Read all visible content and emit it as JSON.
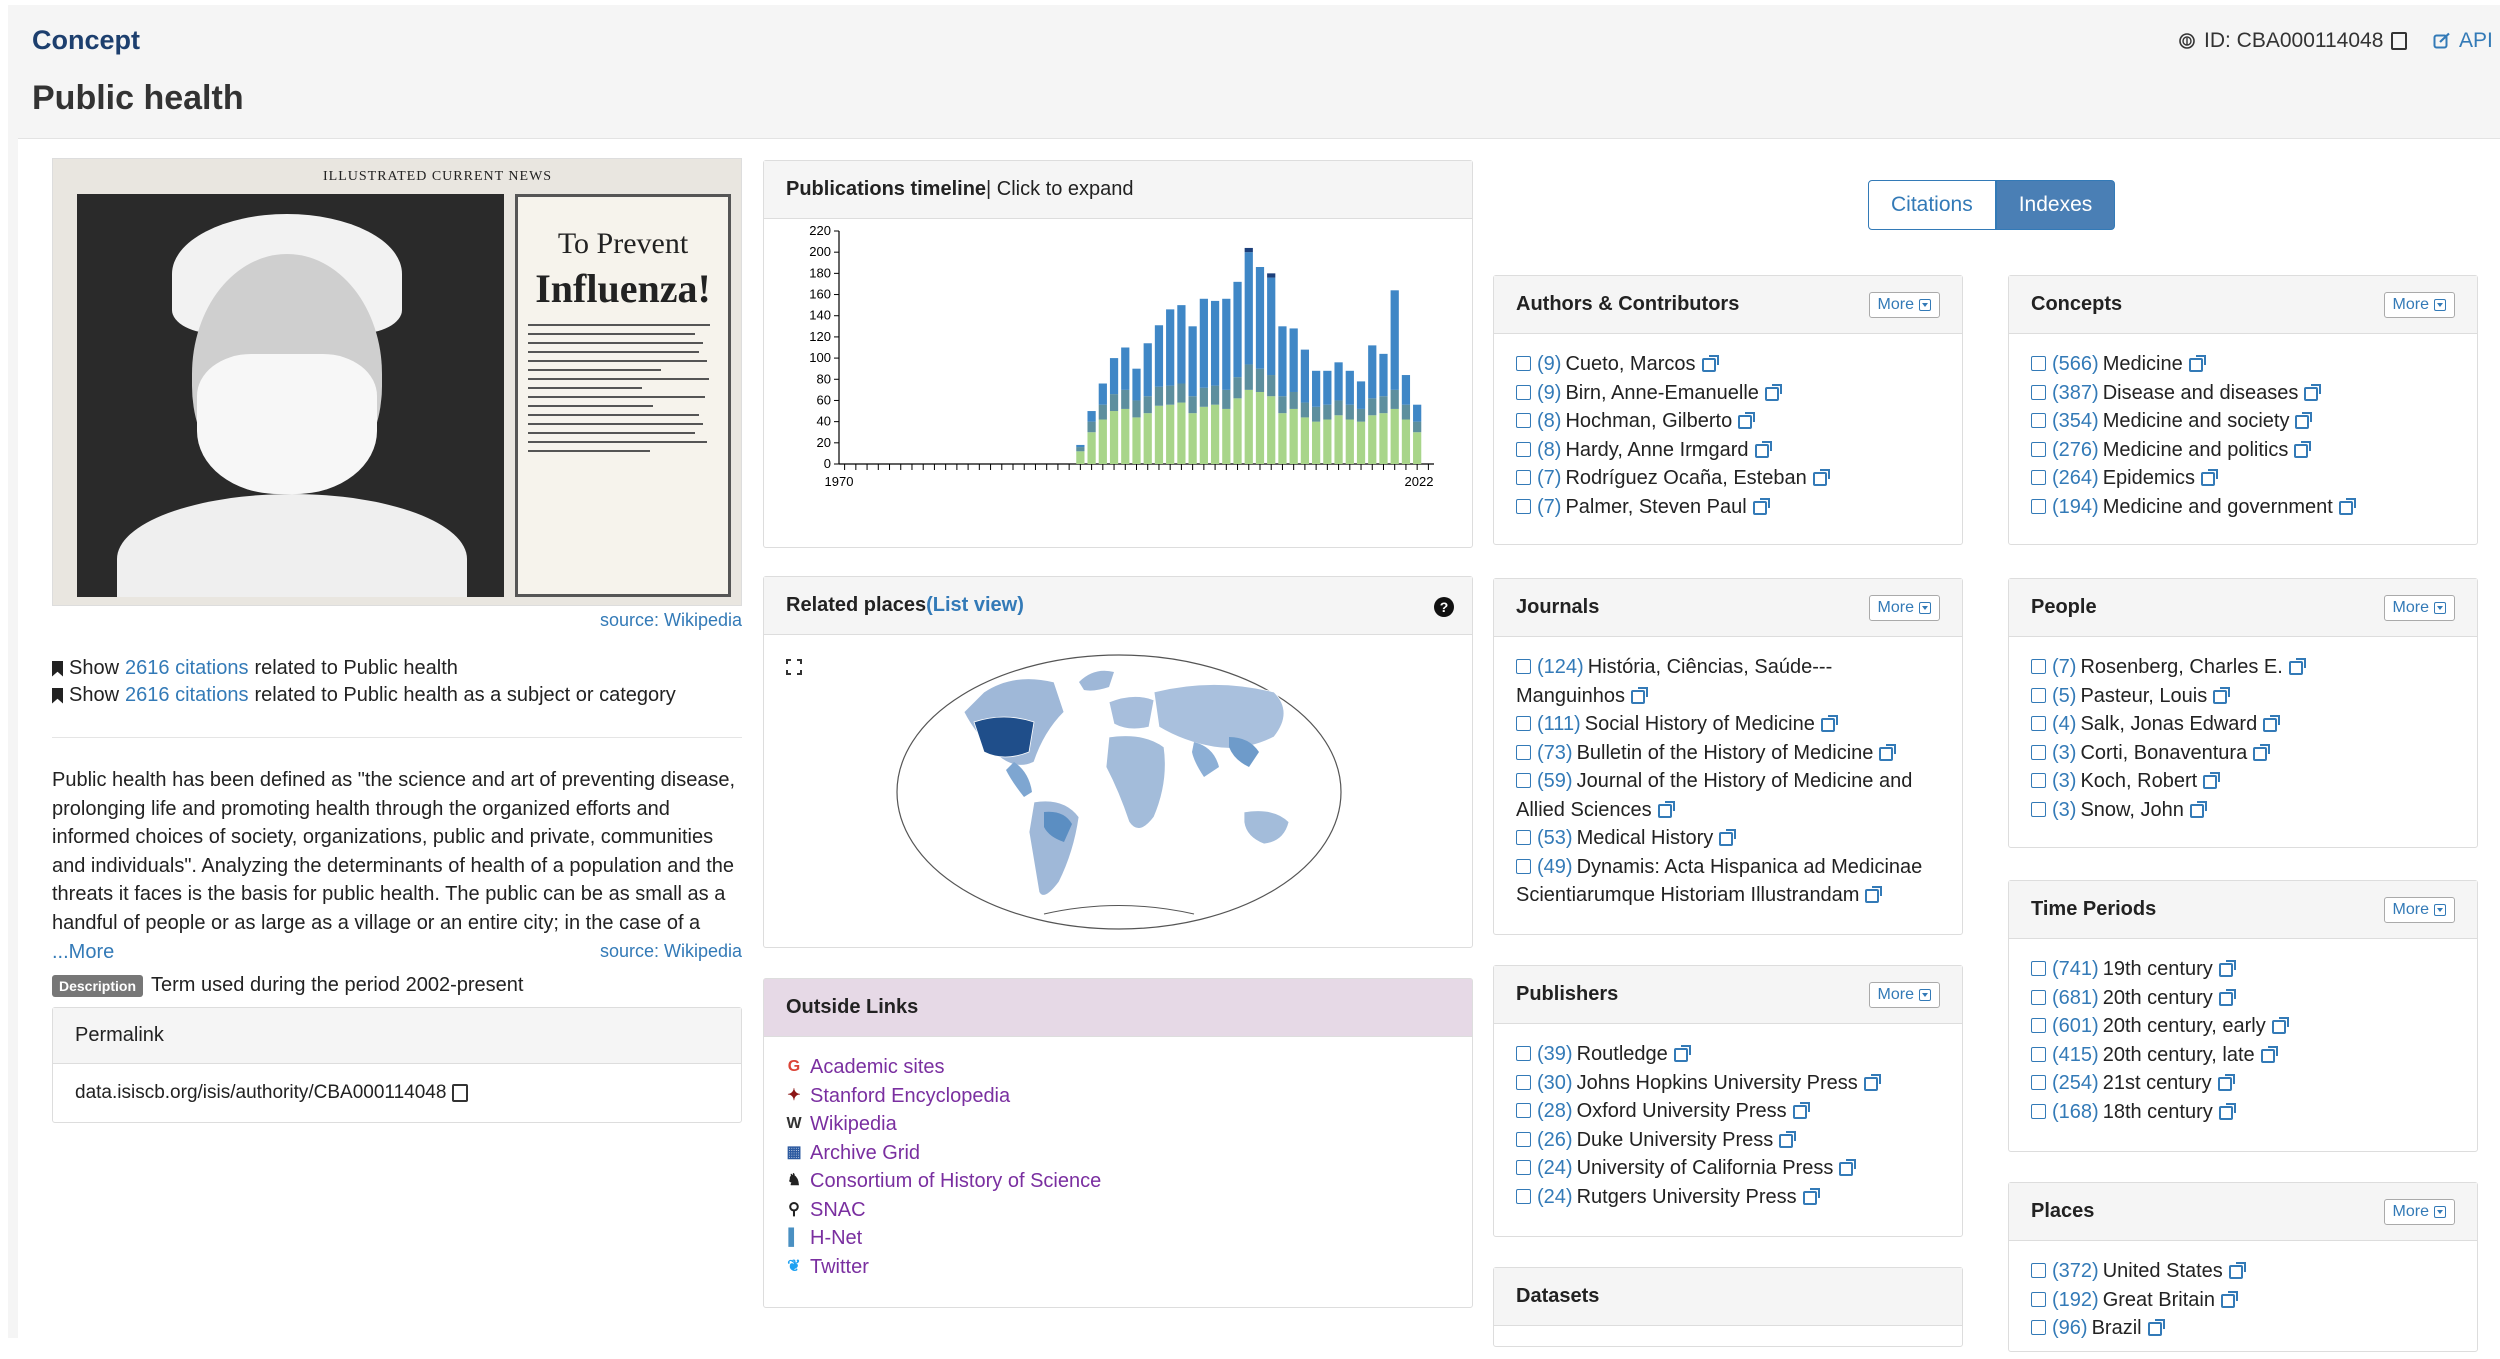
{
  "header": {
    "concept_label": "Concept",
    "title": "Public health",
    "id_text": "ID: CBA000114048",
    "api_label": "API"
  },
  "left": {
    "poster": {
      "headline": "ILLUSTRATED CURRENT NEWS",
      "line1": "To Prevent",
      "line2": "Influenza!"
    },
    "image_source": "source: Wikipedia",
    "show1": {
      "prefix": "Show",
      "link": "2616 citations",
      "suffix": "related to Public health"
    },
    "show2": {
      "prefix": "Show",
      "link": "2616 citations",
      "suffix": "related to Public health as a subject or category"
    },
    "description": "Public health has been defined as \"the science and art of preventing disease, prolonging life and promoting health through the organized efforts and informed choices of society, organizations, public and private, communities and individuals\". Analyzing the determinants of health of a population and the threats it faces is the basis for public health. The public can be as small as a handful of people or as large as a village or an entire city; in the case of a pandemic it may encompass several continents. The concept of health tak…",
    "more_link": "...More",
    "desc_source": "source: Wikipedia",
    "badge": "Description",
    "badge_text": "Term used during the period 2002-present",
    "permalink_title": "Permalink",
    "permalink_url": "data.isiscb.org/isis/authority/CBA000114048"
  },
  "timeline": {
    "title_bold": "Publications timeline",
    "title_rest": " | Click to expand"
  },
  "chart_data": {
    "type": "bar",
    "x_start": 1970,
    "x_end": 2022,
    "x_tick_labels": [
      "1970",
      "2022"
    ],
    "y_ticks": [
      0,
      20,
      40,
      60,
      80,
      100,
      120,
      140,
      160,
      180,
      200,
      220
    ],
    "ylim": [
      0,
      220
    ],
    "years": [
      1991,
      1992,
      1993,
      1994,
      1995,
      1996,
      1997,
      1998,
      1999,
      2000,
      2001,
      2002,
      2003,
      2004,
      2005,
      2006,
      2007,
      2008,
      2009,
      2010,
      2011,
      2012,
      2013,
      2014,
      2015,
      2016,
      2017,
      2018,
      2019,
      2020,
      2021
    ],
    "series": [
      {
        "values": [
          12,
          30,
          42,
          50,
          52,
          44,
          48,
          55,
          56,
          58,
          48,
          54,
          56,
          52,
          62,
          70,
          68,
          64,
          48,
          52,
          44,
          40,
          42,
          46,
          42,
          40,
          46,
          48,
          52,
          42,
          30
        ],
        "color": "#a8d58a"
      },
      {
        "values": [
          4,
          10,
          14,
          16,
          18,
          16,
          16,
          18,
          18,
          18,
          16,
          18,
          18,
          18,
          20,
          24,
          22,
          20,
          16,
          16,
          14,
          14,
          14,
          14,
          14,
          12,
          16,
          16,
          18,
          14,
          10
        ],
        "color": "#5d8f9e"
      },
      {
        "values": [
          2,
          10,
          20,
          34,
          40,
          30,
          50,
          58,
          72,
          74,
          66,
          84,
          80,
          86,
          90,
          106,
          96,
          92,
          66,
          60,
          50,
          34,
          32,
          36,
          32,
          26,
          50,
          40,
          94,
          28,
          16
        ],
        "color": "#3f87c6"
      },
      {
        "values": [
          0,
          0,
          0,
          0,
          0,
          0,
          0,
          0,
          0,
          0,
          0,
          0,
          0,
          0,
          0,
          4,
          0,
          4,
          0,
          0,
          0,
          0,
          0,
          0,
          0,
          0,
          0,
          0,
          0,
          0,
          0
        ],
        "color": "#1c3f7a"
      }
    ]
  },
  "places": {
    "title": "Related places ",
    "list_view": "(List view)",
    "help": "?"
  },
  "outside": {
    "title": "Outside Links",
    "links": [
      {
        "label": "Academic sites",
        "icon": "G",
        "icon_color": "#db4437"
      },
      {
        "label": "Stanford Encyclopedia",
        "icon": "✦",
        "icon_color": "#8c1515"
      },
      {
        "label": "Wikipedia",
        "icon": "W",
        "icon_color": "#333333"
      },
      {
        "label": "Archive Grid",
        "icon": "▦",
        "icon_color": "#2c5aa0"
      },
      {
        "label": "Consortium of History of Science",
        "icon": "♞",
        "icon_color": "#222222"
      },
      {
        "label": "SNAC",
        "icon": "⚲",
        "icon_color": "#222222"
      },
      {
        "label": "H-Net",
        "icon": "▌",
        "icon_color": "#4a90c2"
      },
      {
        "label": "Twitter",
        "icon": "❦",
        "icon_color": "#1da1f2"
      }
    ]
  },
  "toggle": {
    "citations": "Citations",
    "indexes": "Indexes"
  },
  "more_label": "More",
  "facets": {
    "authors": {
      "title": "Authors & Contributors",
      "items": [
        {
          "count": "(9)",
          "label": "Cueto, Marcos"
        },
        {
          "count": "(9)",
          "label": "Birn, Anne-Emanuelle"
        },
        {
          "count": "(8)",
          "label": "Hochman, Gilberto"
        },
        {
          "count": "(8)",
          "label": "Hardy, Anne Irmgard"
        },
        {
          "count": "(7)",
          "label": "Rodríguez Ocaña, Esteban"
        },
        {
          "count": "(7)",
          "label": "Palmer, Steven Paul"
        }
      ]
    },
    "concepts": {
      "title": "Concepts",
      "items": [
        {
          "count": "(566)",
          "label": "Medicine"
        },
        {
          "count": "(387)",
          "label": "Disease and diseases"
        },
        {
          "count": "(354)",
          "label": "Medicine and society"
        },
        {
          "count": "(276)",
          "label": "Medicine and politics"
        },
        {
          "count": "(264)",
          "label": "Epidemics"
        },
        {
          "count": "(194)",
          "label": "Medicine and government"
        }
      ]
    },
    "journals": {
      "title": "Journals",
      "items": [
        {
          "count": "(124)",
          "label": "História, Ciências, Saúde---Manguinhos"
        },
        {
          "count": "(111)",
          "label": "Social History of Medicine"
        },
        {
          "count": "(73)",
          "label": "Bulletin of the History of Medicine"
        },
        {
          "count": "(59)",
          "label": "Journal of the History of Medicine and Allied Sciences"
        },
        {
          "count": "(53)",
          "label": "Medical History"
        },
        {
          "count": "(49)",
          "label": "Dynamis: Acta Hispanica ad Medicinae Scientiarumque Historiam Illustrandam"
        }
      ]
    },
    "people": {
      "title": "People",
      "items": [
        {
          "count": "(7)",
          "label": "Rosenberg, Charles E."
        },
        {
          "count": "(5)",
          "label": "Pasteur, Louis"
        },
        {
          "count": "(4)",
          "label": "Salk, Jonas Edward"
        },
        {
          "count": "(3)",
          "label": "Corti, Bonaventura"
        },
        {
          "count": "(3)",
          "label": "Koch, Robert"
        },
        {
          "count": "(3)",
          "label": "Snow, John"
        }
      ]
    },
    "publishers": {
      "title": "Publishers",
      "items": [
        {
          "count": "(39)",
          "label": "Routledge"
        },
        {
          "count": "(30)",
          "label": "Johns Hopkins University Press"
        },
        {
          "count": "(28)",
          "label": "Oxford University Press"
        },
        {
          "count": "(26)",
          "label": "Duke University Press"
        },
        {
          "count": "(24)",
          "label": "University of California Press"
        },
        {
          "count": "(24)",
          "label": "Rutgers University Press"
        }
      ]
    },
    "time_periods": {
      "title": "Time Periods",
      "items": [
        {
          "count": "(741)",
          "label": "19th century"
        },
        {
          "count": "(681)",
          "label": "20th century"
        },
        {
          "count": "(601)",
          "label": "20th century, early"
        },
        {
          "count": "(415)",
          "label": "20th century, late"
        },
        {
          "count": "(254)",
          "label": "21st century"
        },
        {
          "count": "(168)",
          "label": "18th century"
        }
      ]
    },
    "datasets": {
      "title": "Datasets",
      "items": []
    },
    "places": {
      "title": "Places",
      "items": [
        {
          "count": "(372)",
          "label": "United States"
        },
        {
          "count": "(192)",
          "label": "Great Britain"
        },
        {
          "count": "(96)",
          "label": "Brazil"
        }
      ]
    }
  }
}
